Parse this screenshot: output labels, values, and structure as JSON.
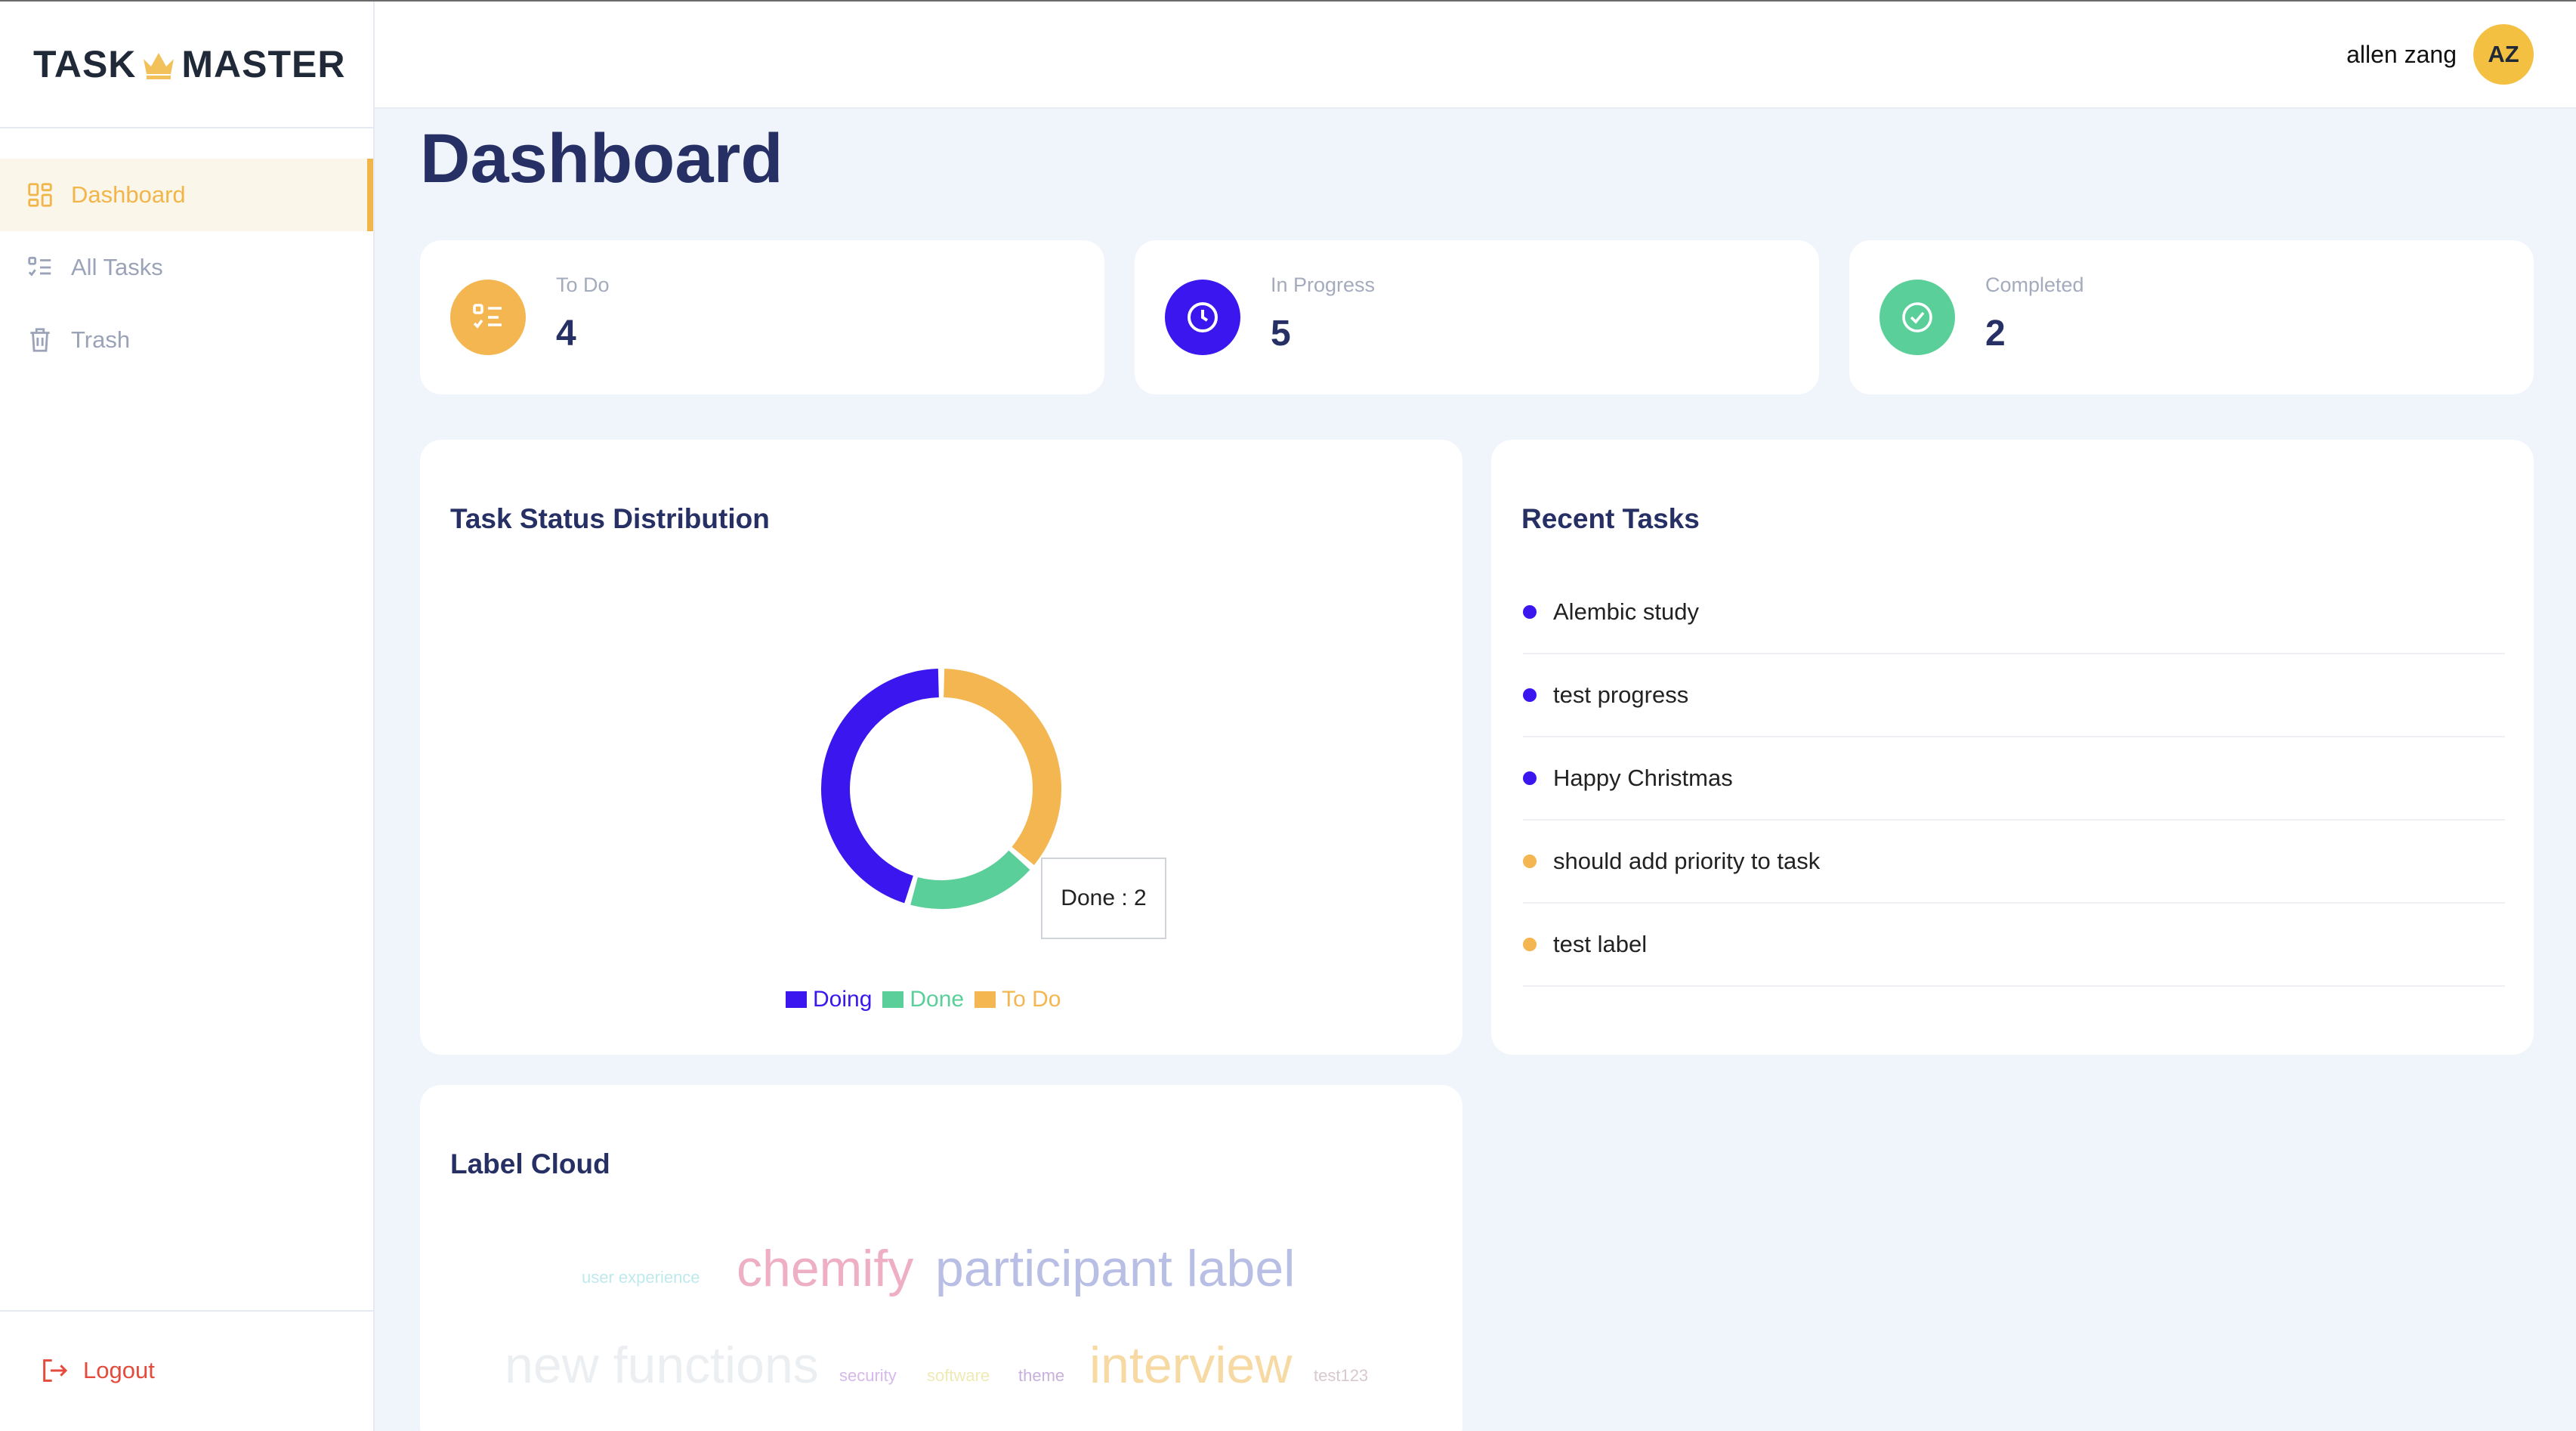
{
  "app": {
    "logo_left": "TASK",
    "logo_right": "MASTER"
  },
  "sidebar": {
    "items": [
      {
        "label": "Dashboard",
        "icon": "dashboard-grid-icon",
        "active": true
      },
      {
        "label": "All Tasks",
        "icon": "checklist-icon",
        "active": false
      },
      {
        "label": "Trash",
        "icon": "trash-icon",
        "active": false
      }
    ],
    "logout_label": "Logout"
  },
  "header": {
    "user_name": "allen zang",
    "avatar_initials": "AZ"
  },
  "page": {
    "title": "Dashboard"
  },
  "stats": [
    {
      "label": "To Do",
      "value": "4",
      "icon": "list-check-icon",
      "color": "#f4b650"
    },
    {
      "label": "In Progress",
      "value": "5",
      "icon": "clock-icon",
      "color": "#3b16ee"
    },
    {
      "label": "Completed",
      "value": "2",
      "icon": "check-circle-icon",
      "color": "#5bcf99"
    }
  ],
  "status_card": {
    "title": "Task Status Distribution",
    "tooltip": "Done : 2"
  },
  "chart_data": {
    "type": "pie",
    "categories": [
      "Doing",
      "Done",
      "To Do"
    ],
    "values": [
      5,
      2,
      4
    ],
    "colors": [
      "#3b16ee",
      "#5bcf99",
      "#f4b650"
    ],
    "legend_position": "bottom"
  },
  "recent": {
    "title": "Recent Tasks",
    "items": [
      {
        "label": "Alembic study",
        "color": "#3b16ee"
      },
      {
        "label": "test progress",
        "color": "#3b16ee"
      },
      {
        "label": "Happy Christmas",
        "color": "#3b16ee"
      },
      {
        "label": "should add priority to task",
        "color": "#f4b650"
      },
      {
        "label": "test label",
        "color": "#f4b650"
      }
    ]
  },
  "label_cloud": {
    "title": "Label Cloud",
    "words": [
      {
        "text": "user experience",
        "color": "#bfe9ec"
      },
      {
        "text": "chemify",
        "color": "#eeaec3"
      },
      {
        "text": "participant label",
        "color": "#b9bfe4"
      },
      {
        "text": "new functions",
        "color": "#eceff2"
      },
      {
        "text": "security",
        "color": "#d7b8ec"
      },
      {
        "text": "software",
        "color": "#efeab4"
      },
      {
        "text": "theme",
        "color": "#c8b0dc"
      },
      {
        "text": "interview",
        "color": "#f7d9a4"
      },
      {
        "text": "test123",
        "color": "#d8c9cf"
      }
    ]
  }
}
